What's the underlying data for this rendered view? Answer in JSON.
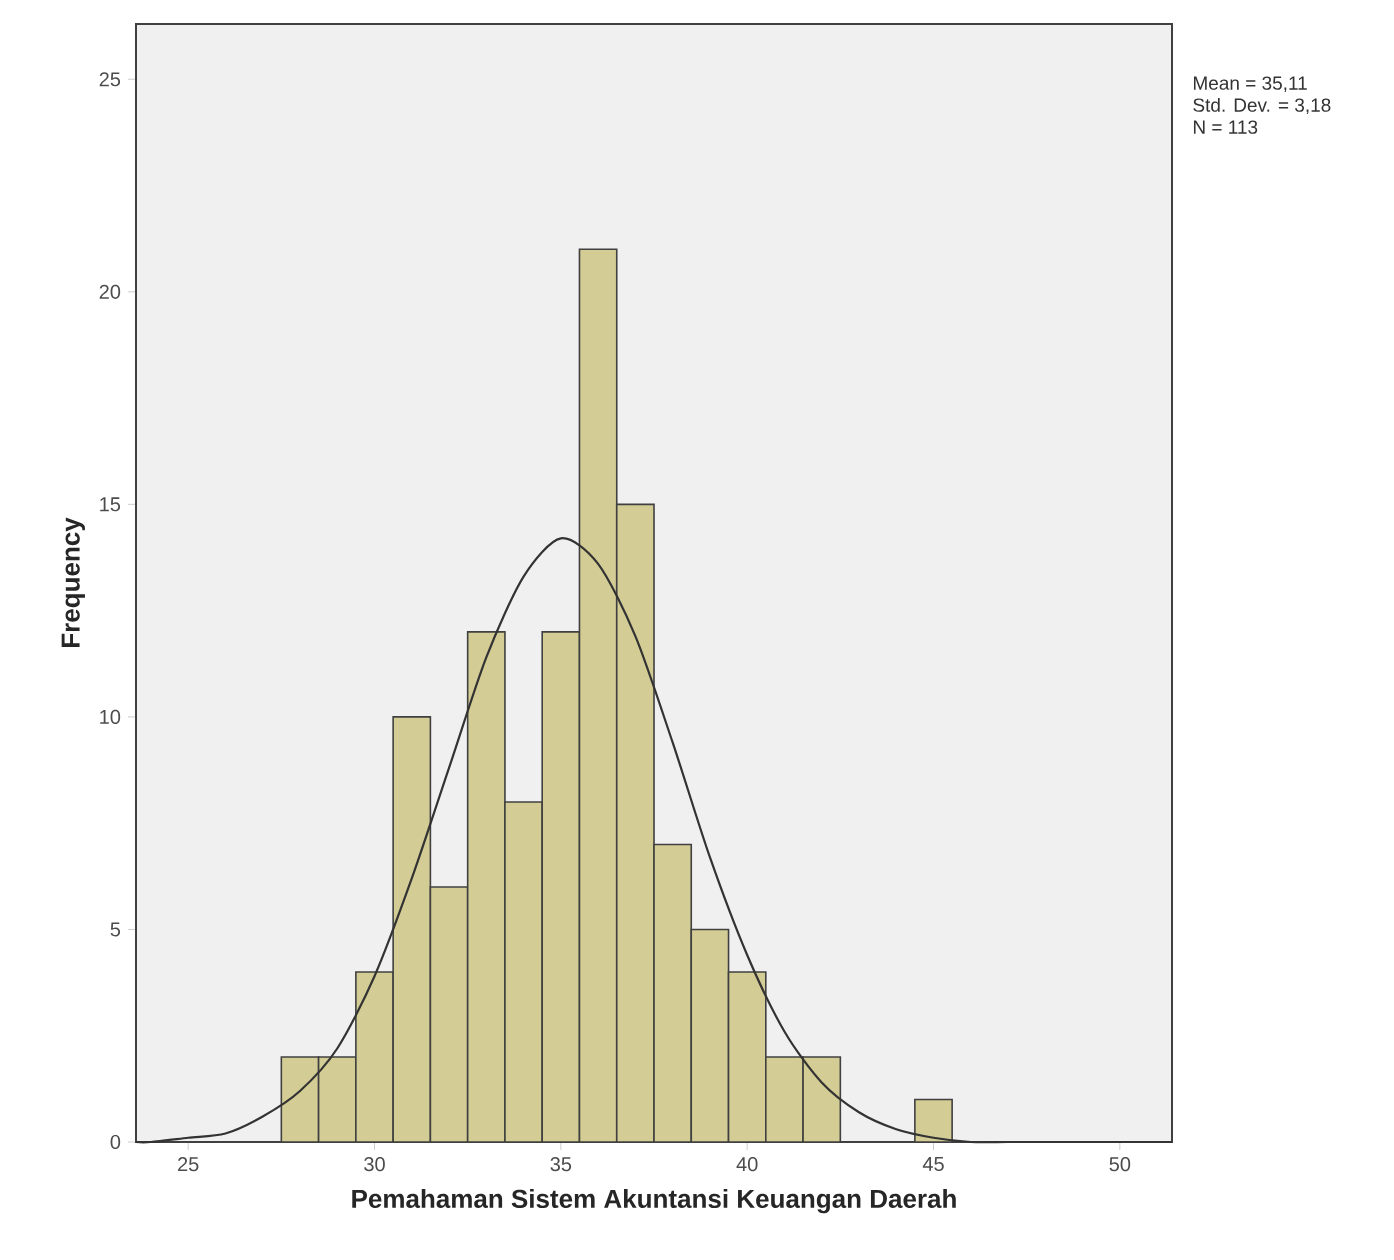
{
  "chart_data": {
    "type": "histogram",
    "xlabel": "Pemahaman Sistem Akuntansi Keuangan Daerah",
    "ylabel": "Frequency",
    "bins": [
      27.5,
      28.5,
      29.5,
      30.5,
      31.5,
      32.5,
      33.5,
      34.5,
      35.5,
      36.5,
      37.5,
      38.5,
      39.5,
      40.5,
      41.5,
      42.5,
      43.5,
      44.5,
      45.5
    ],
    "values": [
      2,
      2,
      4,
      10,
      6,
      12,
      8,
      12,
      21,
      15,
      7,
      5,
      4,
      2,
      2,
      0,
      0,
      1
    ],
    "color": "#d3cc95",
    "series": [
      {
        "type": "line",
        "color": "#333333",
        "x": [
          23.6,
          24,
          25,
          26,
          27,
          28,
          29,
          30,
          31,
          32,
          33,
          34,
          35,
          36,
          37,
          38,
          39,
          40,
          41,
          42,
          43,
          44,
          45,
          46,
          47,
          48,
          51.4
        ],
        "values": [
          0.0,
          0.0,
          0.1,
          0.2,
          0.6,
          1.2,
          2.2,
          3.9,
          6.2,
          8.8,
          11.4,
          13.3,
          14.2,
          13.6,
          11.9,
          9.4,
          6.7,
          4.4,
          2.6,
          1.4,
          0.7,
          0.3,
          0.1,
          0.0,
          0.0,
          0.0,
          0.0
        ]
      }
    ],
    "xlim": [
      23.6,
      51.4
    ],
    "ylim": [
      0,
      26.3
    ],
    "xticks": [
      25,
      30,
      35,
      40,
      45,
      50
    ],
    "yticks": [
      0,
      5,
      10,
      15,
      20,
      25
    ],
    "grid": false,
    "annotations": [
      "Mean = 35,11",
      "Std. Dev. = 3,18",
      "N = 113"
    ]
  }
}
